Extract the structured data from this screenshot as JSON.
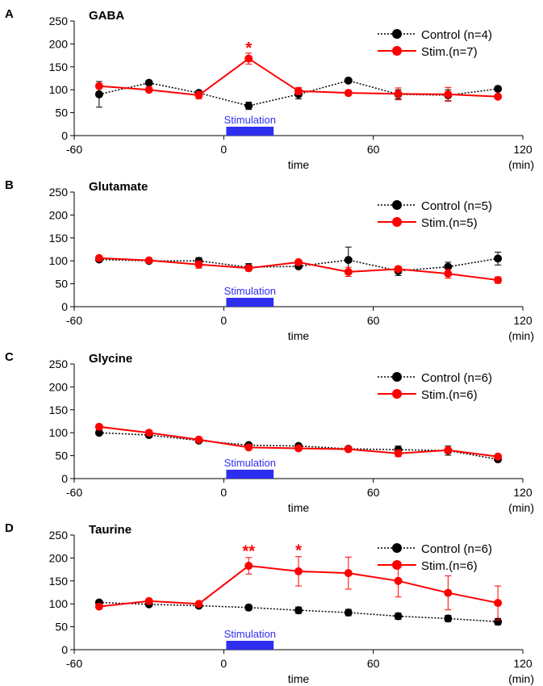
{
  "chart_data": [
    {
      "type": "line",
      "panel_letter": "A",
      "title": "GABA",
      "xlabel": "time",
      "xunit": "(min)",
      "xlim": [
        -60,
        120
      ],
      "ylim": [
        0,
        250
      ],
      "xticks": [
        -60,
        0,
        60,
        120
      ],
      "yticks": [
        0,
        50,
        100,
        150,
        200,
        250
      ],
      "stimulation": {
        "label": "Stimulation",
        "start": 1,
        "end": 20
      },
      "series": [
        {
          "name": "Control (n=4)",
          "style": "dotted",
          "color": "#000000",
          "x": [
            -50,
            -30,
            -10,
            10,
            30,
            50,
            70,
            90,
            110
          ],
          "y": [
            90,
            115,
            93,
            65,
            90,
            120,
            90,
            88,
            102
          ],
          "err": [
            28,
            4,
            4,
            8,
            10,
            4,
            10,
            12,
            4
          ]
        },
        {
          "name": "Stim.(n=7)",
          "style": "solid",
          "color": "#ff0000",
          "x": [
            -50,
            -30,
            -10,
            10,
            30,
            50,
            70,
            90,
            110
          ],
          "y": [
            108,
            100,
            88,
            168,
            97,
            93,
            91,
            90,
            85
          ],
          "err": [
            3,
            3,
            8,
            12,
            8,
            5,
            13,
            15,
            4
          ]
        }
      ],
      "annotations": [
        {
          "text": "*",
          "x": 10,
          "y": 180,
          "color": "#ff0000"
        }
      ]
    },
    {
      "type": "line",
      "panel_letter": "B",
      "title": "Glutamate",
      "xlabel": "time",
      "xunit": "(min)",
      "xlim": [
        -60,
        120
      ],
      "ylim": [
        0,
        250
      ],
      "xticks": [
        -60,
        0,
        60,
        120
      ],
      "yticks": [
        0,
        50,
        100,
        150,
        200,
        250
      ],
      "stimulation": {
        "label": "Stimulation",
        "start": 1,
        "end": 20
      },
      "series": [
        {
          "name": "Control (n=5)",
          "style": "dotted",
          "color": "#000000",
          "x": [
            -50,
            -30,
            -10,
            10,
            30,
            50,
            70,
            90,
            110
          ],
          "y": [
            103,
            100,
            100,
            86,
            88,
            102,
            78,
            87,
            105
          ],
          "err": [
            3,
            3,
            7,
            8,
            4,
            28,
            10,
            10,
            14
          ]
        },
        {
          "name": "Stim.(n=5)",
          "style": "solid",
          "color": "#ff0000",
          "x": [
            -50,
            -30,
            -10,
            10,
            30,
            50,
            70,
            90,
            110
          ],
          "y": [
            106,
            101,
            92,
            84,
            97,
            76,
            82,
            72,
            58
          ],
          "err": [
            3,
            3,
            8,
            6,
            4,
            10,
            5,
            10,
            7
          ]
        }
      ],
      "annotations": []
    },
    {
      "type": "line",
      "panel_letter": "C",
      "title": "Glycine",
      "xlabel": "time",
      "xunit": "(min)",
      "xlim": [
        -60,
        120
      ],
      "ylim": [
        0,
        250
      ],
      "xticks": [
        -60,
        0,
        60,
        120
      ],
      "yticks": [
        0,
        50,
        100,
        150,
        200,
        250
      ],
      "stimulation": {
        "label": "Stimulation",
        "start": 1,
        "end": 20
      },
      "series": [
        {
          "name": "Control (n=6)",
          "style": "dotted",
          "color": "#000000",
          "x": [
            -50,
            -30,
            -10,
            10,
            30,
            50,
            70,
            90,
            110
          ],
          "y": [
            100,
            95,
            83,
            73,
            71,
            65,
            63,
            61,
            42
          ],
          "err": [
            2,
            2,
            3,
            3,
            4,
            3,
            8,
            10,
            3
          ]
        },
        {
          "name": "Stim.(n=6)",
          "style": "solid",
          "color": "#ff0000",
          "x": [
            -50,
            -30,
            -10,
            10,
            30,
            50,
            70,
            90,
            110
          ],
          "y": [
            113,
            100,
            85,
            68,
            66,
            64,
            55,
            62,
            48
          ],
          "err": [
            3,
            3,
            3,
            4,
            5,
            4,
            7,
            4,
            3
          ]
        }
      ],
      "annotations": []
    },
    {
      "type": "line",
      "panel_letter": "D",
      "title": "Taurine",
      "xlabel": "time",
      "xunit": "(min)",
      "xlim": [
        -60,
        120
      ],
      "ylim": [
        0,
        250
      ],
      "xticks": [
        -60,
        0,
        60,
        120
      ],
      "yticks": [
        0,
        50,
        100,
        150,
        200,
        250
      ],
      "stimulation": {
        "label": "Stimulation",
        "start": 1,
        "end": 20
      },
      "series": [
        {
          "name": "Control (n=6)",
          "style": "dotted",
          "color": "#000000",
          "x": [
            -50,
            -30,
            -10,
            10,
            30,
            50,
            70,
            90,
            110
          ],
          "y": [
            103,
            99,
            96,
            92,
            86,
            81,
            73,
            68,
            61
          ],
          "err": [
            2,
            3,
            4,
            6,
            7,
            7,
            7,
            7,
            7
          ]
        },
        {
          "name": "Stim.(n=6)",
          "style": "solid",
          "color": "#ff0000",
          "x": [
            -50,
            -30,
            -10,
            10,
            30,
            50,
            70,
            90,
            110
          ],
          "y": [
            94,
            106,
            100,
            183,
            171,
            167,
            150,
            124,
            102
          ],
          "err": [
            3,
            3,
            3,
            18,
            32,
            35,
            35,
            37,
            37
          ]
        }
      ],
      "annotations": [
        {
          "text": "**",
          "x": 10,
          "y": 203,
          "color": "#ff0000"
        },
        {
          "text": "*",
          "x": 30,
          "y": 205,
          "color": "#ff0000"
        }
      ]
    }
  ]
}
